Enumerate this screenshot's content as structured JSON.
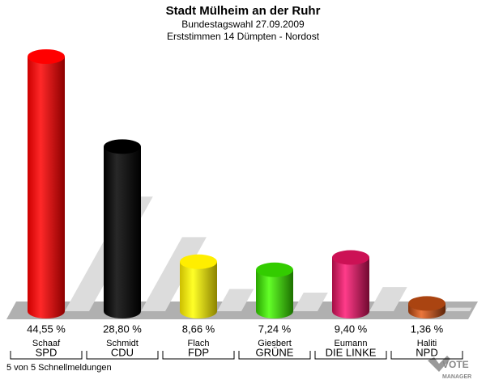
{
  "chart_data": {
    "type": "cylinder-bar",
    "title": "Stadt Mülheim an der Ruhr",
    "subtitle": "Bundestagswahl 27.09.2009",
    "subtitle2": "Erststimmen 14 Dümpten - Nordost",
    "categories": [
      "SPD",
      "CDU",
      "FDP",
      "GRÜNE",
      "DIE LINKE",
      "NPD"
    ],
    "candidates": [
      "Schaaf",
      "Schmidt",
      "Flach",
      "Giesbert",
      "Eumann",
      "Haliti"
    ],
    "values": [
      44.55,
      28.8,
      8.66,
      7.24,
      9.4,
      1.36
    ],
    "value_labels": [
      "44,55 %",
      "28,80 %",
      "8,66 %",
      "7,24 %",
      "9,40 %",
      "1,36 %"
    ],
    "colors": [
      "#ff0000",
      "#000000",
      "#ffee00",
      "#33cc00",
      "#cc1155",
      "#aa4411"
    ],
    "footer": "5 von 5 Schnellmeldungen",
    "logo": [
      "VOTE",
      "MANAGER"
    ]
  }
}
